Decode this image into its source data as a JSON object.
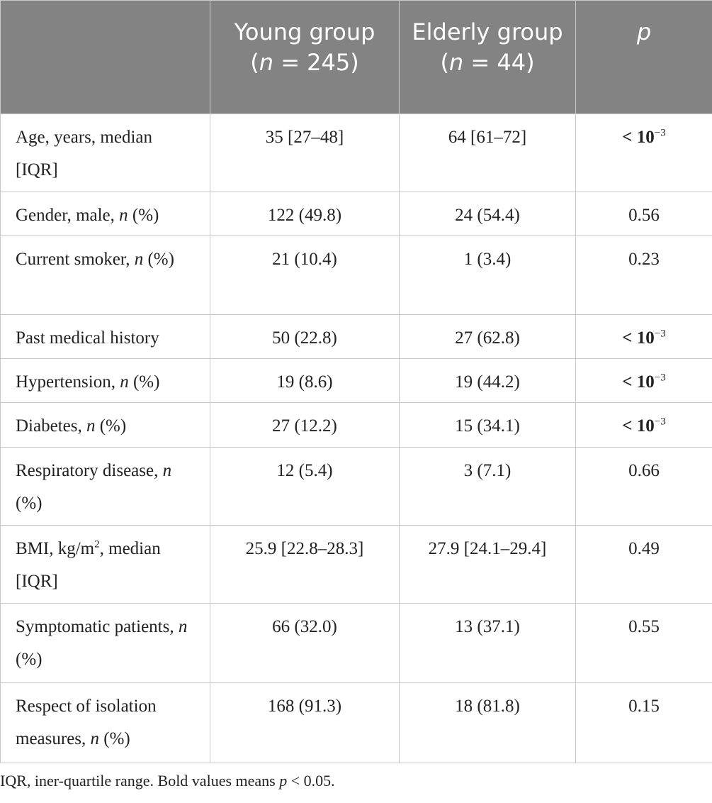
{
  "table": {
    "header": [
      [
        ""
      ],
      [
        "Young group (",
        {
          "text": "n",
          "style": "italic"
        },
        " = 245)"
      ],
      [
        "Elderly group (",
        {
          "text": "n",
          "style": "italic"
        },
        " = 44)"
      ],
      [
        {
          "text": "p",
          "style": "italic"
        }
      ]
    ],
    "rows": [
      [
        [
          "Age, years, median [IQR]"
        ],
        [
          "35 [27–48]"
        ],
        [
          "64 [61–72]"
        ],
        [
          {
            "text": "< 10",
            "style": "bold"
          },
          {
            "text": "−3",
            "style": "sup"
          }
        ]
      ],
      [
        [
          "Gender, male, ",
          {
            "text": "n",
            "style": "italic"
          },
          " (%)"
        ],
        [
          "122 (49.8)"
        ],
        [
          "24 (54.4)"
        ],
        [
          "0.56"
        ]
      ],
      [
        [
          "Current smoker, ",
          {
            "text": "n",
            "style": "italic"
          },
          " (%)"
        ],
        [
          "21 (10.4)"
        ],
        [
          "1 (3.4)"
        ],
        [
          "0.23"
        ]
      ],
      [
        [
          "Past medical history"
        ],
        [
          "50 (22.8)"
        ],
        [
          "27 (62.8)"
        ],
        [
          {
            "text": "< 10",
            "style": "bold"
          },
          {
            "text": "−3",
            "style": "sup"
          }
        ]
      ],
      [
        [
          "Hypertension, ",
          {
            "text": "n",
            "style": "italic"
          },
          " (%)"
        ],
        [
          "19 (8.6)"
        ],
        [
          "19 (44.2)"
        ],
        [
          {
            "text": "< 10",
            "style": "bold"
          },
          {
            "text": "−3",
            "style": "sup"
          }
        ]
      ],
      [
        [
          "Diabetes, ",
          {
            "text": "n",
            "style": "italic"
          },
          " (%)"
        ],
        [
          "27 (12.2)"
        ],
        [
          "15 (34.1)"
        ],
        [
          {
            "text": "< 10",
            "style": "bold"
          },
          {
            "text": "−3",
            "style": "sup"
          }
        ]
      ],
      [
        [
          "Respiratory disease, ",
          {
            "text": "n",
            "style": "italic"
          },
          " (%)"
        ],
        [
          "12 (5.4)"
        ],
        [
          "3 (7.1)"
        ],
        [
          "0.66"
        ]
      ],
      [
        [
          "BMI, kg/m",
          {
            "text": "2",
            "style": "sup"
          },
          ", median [IQR]"
        ],
        [
          "25.9 [22.8–28.3]"
        ],
        [
          "27.9 [24.1–29.4]"
        ],
        [
          "0.49"
        ]
      ],
      [
        [
          "Symptomatic patients, ",
          {
            "text": "n",
            "style": "italic"
          },
          " (%)"
        ],
        [
          "66 (32.0)"
        ],
        [
          "13 (37.1)"
        ],
        [
          "0.55"
        ]
      ],
      [
        [
          "Respect of isolation measures, ",
          {
            "text": "n",
            "style": "italic"
          },
          " (%)"
        ],
        [
          "168 (91.3)"
        ],
        [
          "18 (81.8)"
        ],
        [
          "0.15"
        ]
      ]
    ],
    "footnote": [
      "IQR, iner-quartile range. Bold values means ",
      {
        "text": "p",
        "style": "italic"
      },
      " < 0.05."
    ]
  }
}
